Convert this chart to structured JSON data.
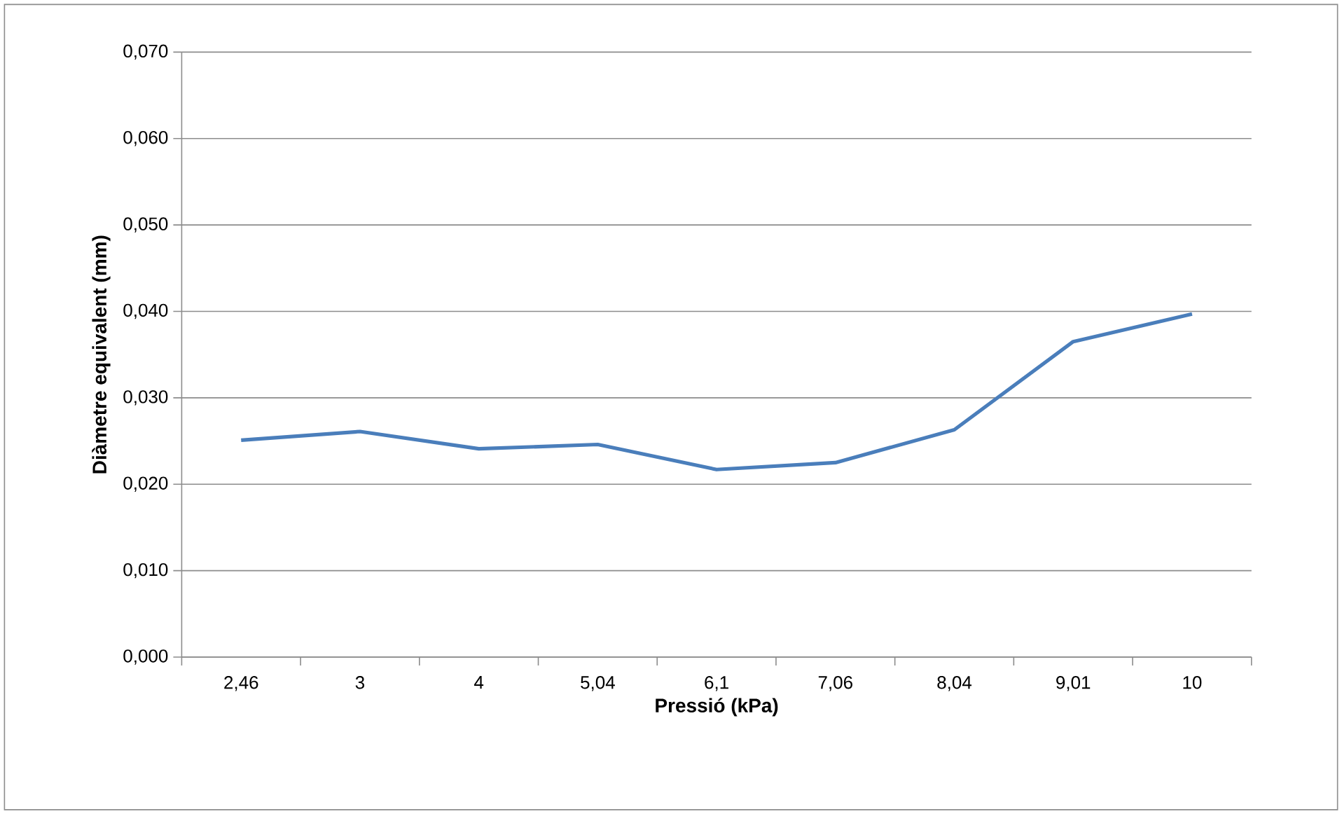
{
  "chart_data": {
    "type": "line",
    "xlabel": "Pressió (kPa)",
    "ylabel": "Diàmetre equivalent (mm)",
    "categories": [
      "2,46",
      "3",
      "4",
      "5,04",
      "6,1",
      "7,06",
      "8,04",
      "9,01",
      "10"
    ],
    "series": [
      {
        "color": "#4a7ebb",
        "values": [
          0.0251,
          0.0261,
          0.0241,
          0.0246,
          0.0217,
          0.0225,
          0.0263,
          0.0365,
          0.0397
        ]
      }
    ],
    "ylim": [
      0,
      0.07
    ],
    "yticks": [
      {
        "value": 0,
        "label": "0,000"
      },
      {
        "value": 0.01,
        "label": "0,010"
      },
      {
        "value": 0.02,
        "label": "0,020"
      },
      {
        "value": 0.03,
        "label": "0,030"
      },
      {
        "value": 0.04,
        "label": "0,040"
      },
      {
        "value": 0.05,
        "label": "0,050"
      },
      {
        "value": 0.06,
        "label": "0,060"
      },
      {
        "value": 0.07,
        "label": "0,070"
      }
    ],
    "grid": "y",
    "marker": "none",
    "line_style": "solid"
  }
}
